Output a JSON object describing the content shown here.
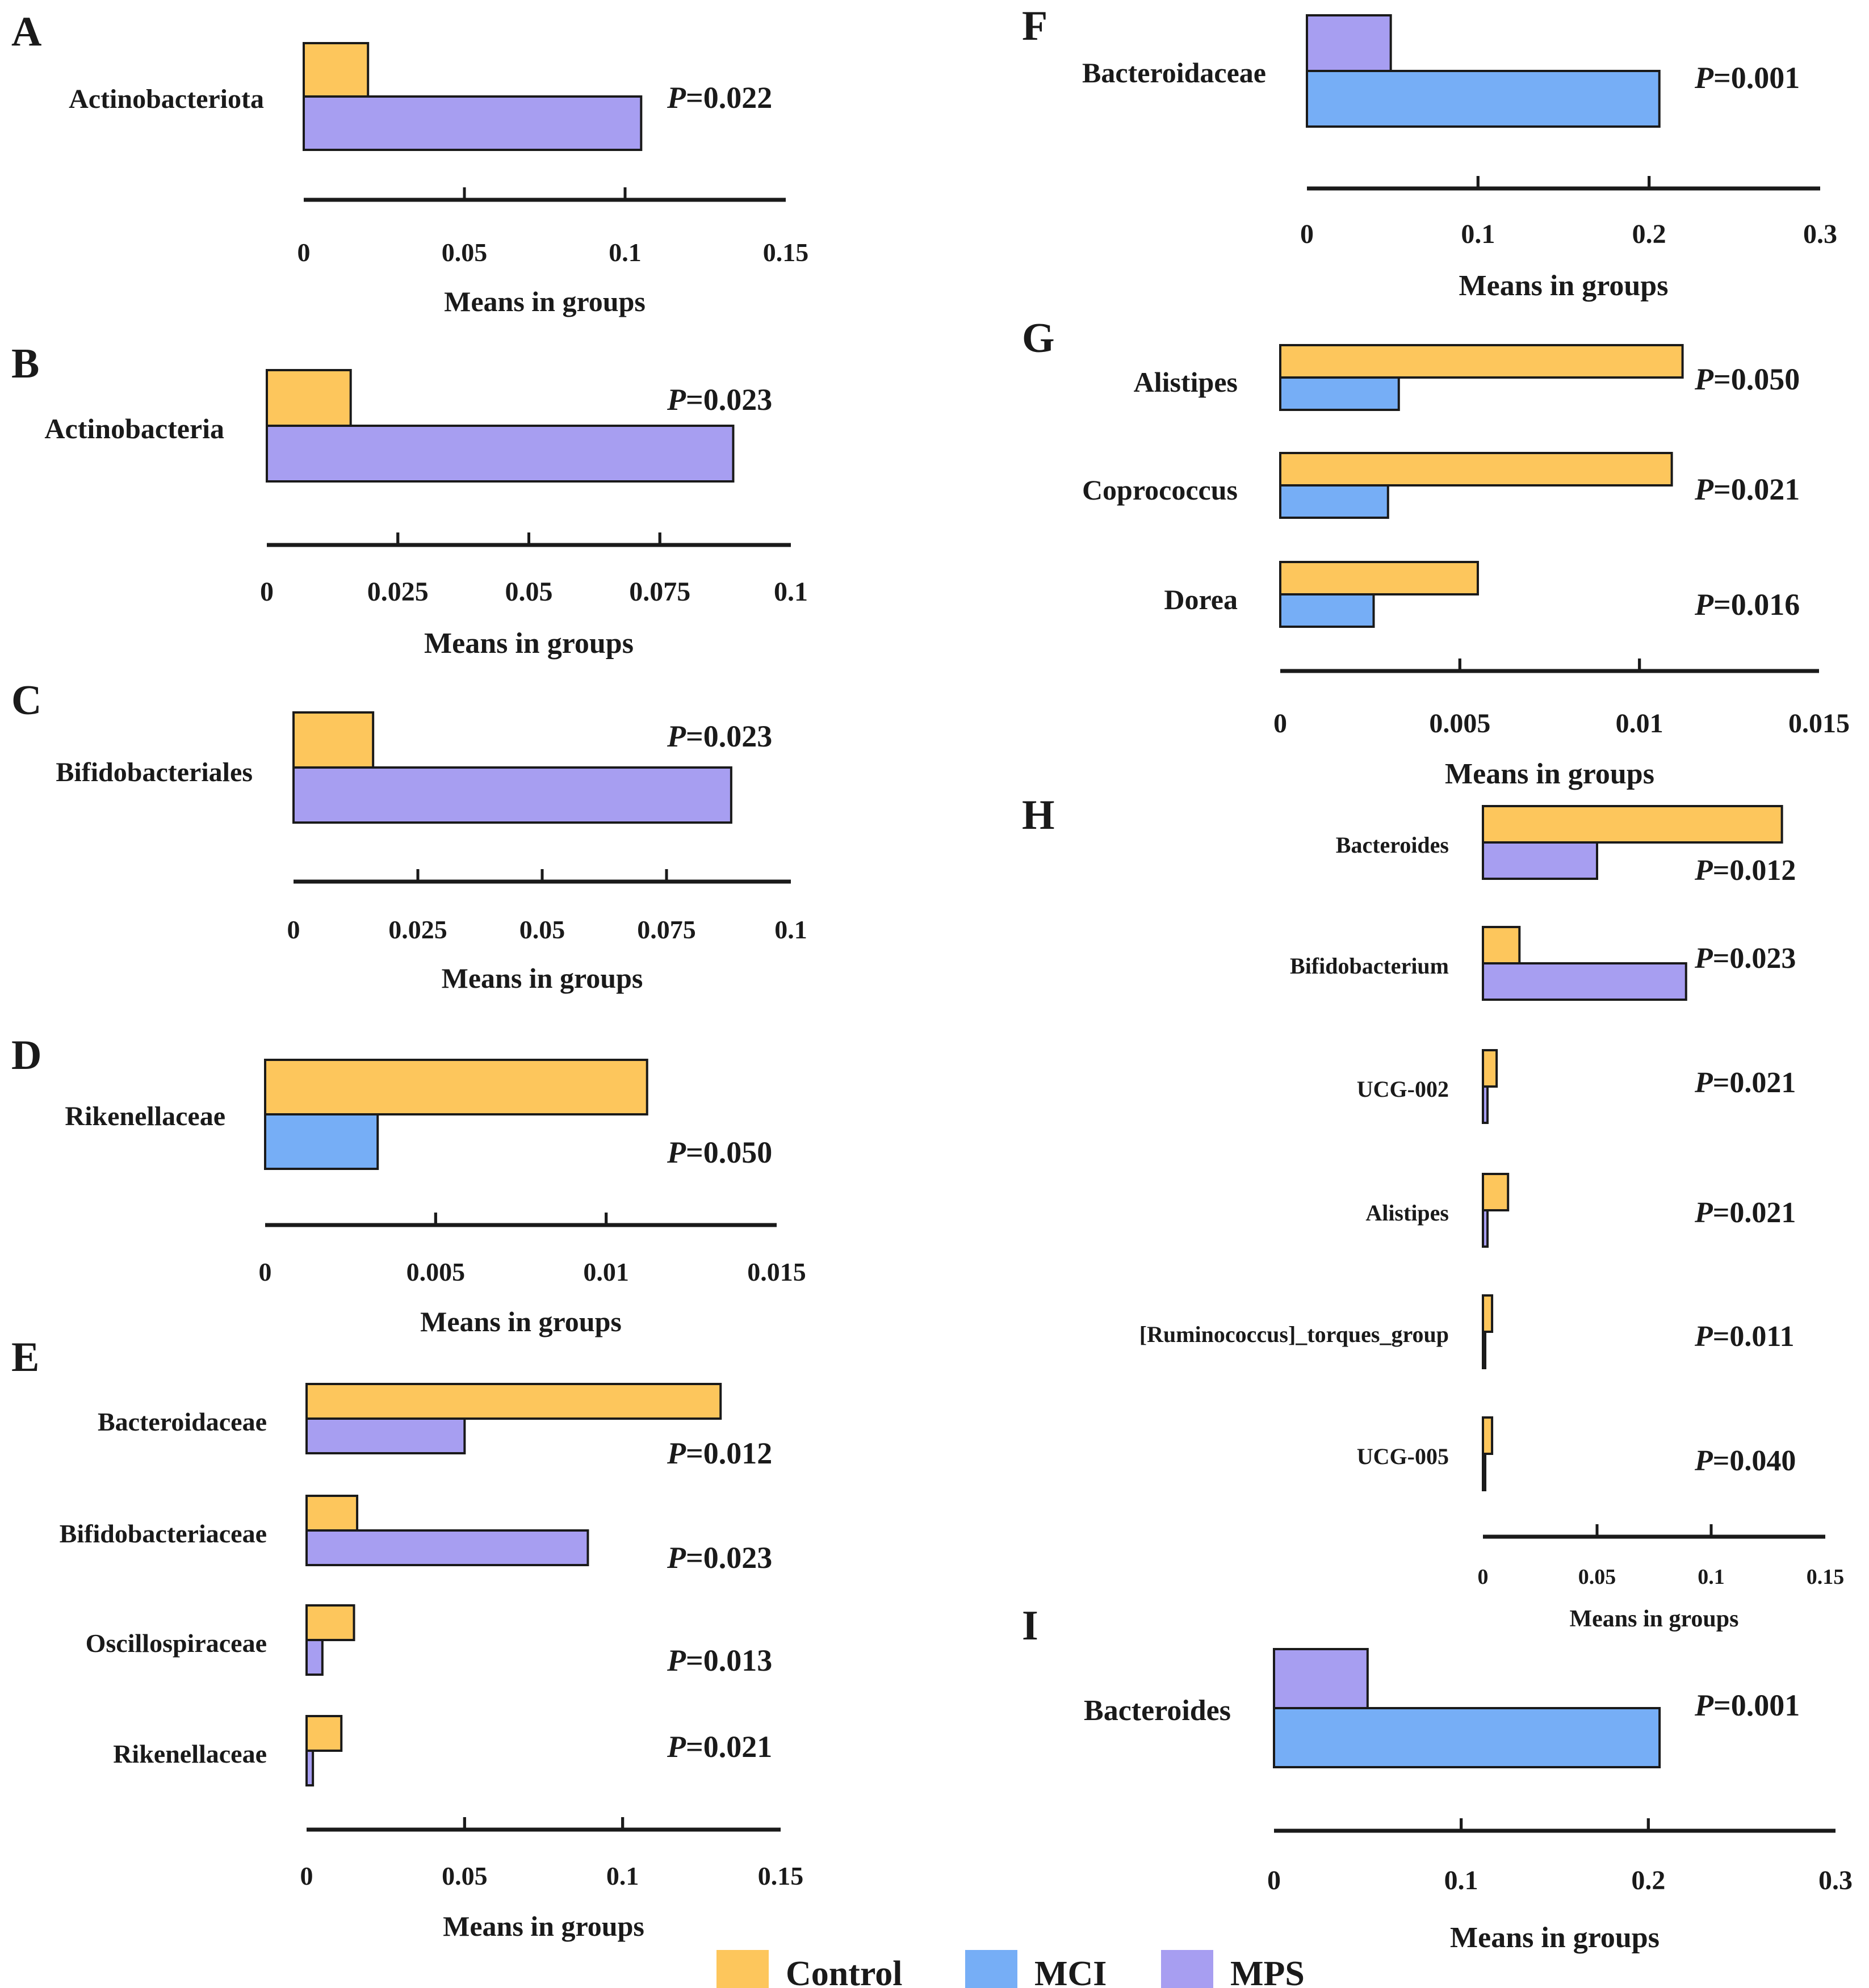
{
  "colors": {
    "Control": "#FDC65C",
    "MCI": "#76AEF6",
    "MPS": "#A79EF1",
    "axis": "#1a1a1a",
    "bar_stroke": "#1a1a1a"
  },
  "axis_label": "Means in groups",
  "legend": [
    {
      "name": "Control",
      "color": "#FDC65C"
    },
    {
      "name": "MCI",
      "color": "#76AEF6"
    },
    {
      "name": "MPS",
      "color": "#A79EF1"
    }
  ],
  "chart_data": [
    {
      "id": "A",
      "type": "bar",
      "orientation": "horizontal",
      "xlabel": "Means in groups",
      "xlim": [
        0,
        0.15
      ],
      "ticks": [
        "0",
        "0.05",
        "0.1",
        "0.15"
      ],
      "series": [
        "Control",
        "MPS"
      ],
      "rows": [
        {
          "label": "Actinobacteriota",
          "values": [
            0.02,
            0.105
          ],
          "p": "=0.022"
        }
      ]
    },
    {
      "id": "B",
      "type": "bar",
      "orientation": "horizontal",
      "xlabel": "Means in groups",
      "xlim": [
        0,
        0.1
      ],
      "ticks": [
        "0",
        "0.025",
        "0.05",
        "0.075",
        "0.1"
      ],
      "series": [
        "Control",
        "MPS"
      ],
      "rows": [
        {
          "label": "Actinobacteria",
          "values": [
            0.016,
            0.089
          ],
          "p": "=0.023"
        }
      ]
    },
    {
      "id": "C",
      "type": "bar",
      "orientation": "horizontal",
      "xlabel": "Means in groups",
      "xlim": [
        0,
        0.1
      ],
      "ticks": [
        "0",
        "0.025",
        "0.05",
        "0.075",
        "0.1"
      ],
      "series": [
        "Control",
        "MPS"
      ],
      "rows": [
        {
          "label": "Bifidobacteriales",
          "values": [
            0.016,
            0.088
          ],
          "p": "=0.023"
        }
      ]
    },
    {
      "id": "D",
      "type": "bar",
      "orientation": "horizontal",
      "xlabel": "Means in groups",
      "xlim": [
        0,
        0.015
      ],
      "ticks": [
        "0",
        "0.005",
        "0.01",
        "0.015"
      ],
      "series": [
        "Control",
        "MCI"
      ],
      "rows": [
        {
          "label": "Rikenellaceae",
          "values": [
            0.0112,
            0.0033
          ],
          "p": "=0.050"
        }
      ]
    },
    {
      "id": "E",
      "type": "bar",
      "orientation": "horizontal",
      "xlabel": "Means in groups",
      "xlim": [
        0,
        0.15
      ],
      "ticks": [
        "0",
        "0.05",
        "0.1",
        "0.15"
      ],
      "series": [
        "Control",
        "MPS"
      ],
      "rows": [
        {
          "label": "Bacteroidaceae",
          "values": [
            0.131,
            0.05
          ],
          "p": "=0.012"
        },
        {
          "label": "Bifidobacteriaceae",
          "values": [
            0.016,
            0.089
          ],
          "p": "=0.023"
        },
        {
          "label": "Oscillospiraceae",
          "values": [
            0.015,
            0.005
          ],
          "p": "=0.013"
        },
        {
          "label": "Rikenellaceae",
          "values": [
            0.011,
            0.002
          ],
          "p": "=0.021"
        }
      ]
    },
    {
      "id": "F",
      "type": "bar",
      "orientation": "horizontal",
      "xlabel": "Means in groups",
      "xlim": [
        0,
        0.3
      ],
      "ticks": [
        "0",
        "0.1",
        "0.2",
        "0.3"
      ],
      "series": [
        "MPS",
        "MCI"
      ],
      "rows": [
        {
          "label": "Bacteroidaceae",
          "values": [
            0.049,
            0.206
          ],
          "p": "=0.001"
        }
      ]
    },
    {
      "id": "G",
      "type": "bar",
      "orientation": "horizontal",
      "xlabel": "Means in groups",
      "xlim": [
        0,
        0.015
      ],
      "ticks": [
        "0",
        "0.005",
        "0.01",
        "0.015"
      ],
      "series": [
        "Control",
        "MCI"
      ],
      "rows": [
        {
          "label": "Alistipes",
          "values": [
            0.0112,
            0.0033
          ],
          "p": "=0.050"
        },
        {
          "label": "Coprococcus",
          "values": [
            0.0109,
            0.003
          ],
          "p": "=0.021"
        },
        {
          "label": "Dorea",
          "values": [
            0.0055,
            0.0026
          ],
          "p": "=0.016"
        }
      ]
    },
    {
      "id": "H",
      "type": "bar",
      "orientation": "horizontal",
      "xlabel": "Means in groups",
      "xlim": [
        0,
        0.15
      ],
      "ticks": [
        "0",
        "0.05",
        "0.1",
        "0.15"
      ],
      "series": [
        "Control",
        "MPS"
      ],
      "rows": [
        {
          "label": "Bacteroides",
          "values": [
            0.131,
            0.05
          ],
          "p": "=0.012"
        },
        {
          "label": "Bifidobacterium",
          "values": [
            0.016,
            0.089
          ],
          "p": "=0.023"
        },
        {
          "label": "UCG-002",
          "values": [
            0.006,
            0.002
          ],
          "p": "=0.021"
        },
        {
          "label": "Alistipes",
          "values": [
            0.011,
            0.002
          ],
          "p": "=0.021"
        },
        {
          "label": "[Ruminococcus]_torques_group",
          "values": [
            0.004,
            0.001
          ],
          "p": "=0.011"
        },
        {
          "label": "UCG-005",
          "values": [
            0.004,
            0.001
          ],
          "p": "=0.040"
        }
      ]
    },
    {
      "id": "I",
      "type": "bar",
      "orientation": "horizontal",
      "xlabel": "Means in groups",
      "xlim": [
        0,
        0.3
      ],
      "ticks": [
        "0",
        "0.1",
        "0.2",
        "0.3"
      ],
      "series": [
        "MPS",
        "MCI"
      ],
      "rows": [
        {
          "label": "Bacteroides",
          "values": [
            0.05,
            0.206
          ],
          "p": "=0.001"
        }
      ]
    }
  ]
}
